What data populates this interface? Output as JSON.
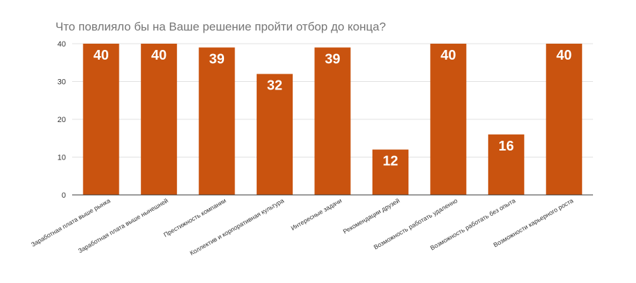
{
  "chart_data": {
    "type": "bar",
    "title": "Что повлияло бы на Ваше решение пройти отбор до конца?",
    "xlabel": "",
    "ylabel": "",
    "ylim": [
      0,
      40
    ],
    "yticks": [
      0,
      10,
      20,
      30,
      40
    ],
    "grid": true,
    "legend": "none",
    "bar_color": "#c9530f",
    "categories": [
      "Заработная плата выше рынка",
      "Заработная плата выше нынешней",
      "Престижность компании",
      "Коллектив и корпоративная культура",
      "Интересные задачи",
      "Рекомендации друзей",
      "Возможность работать удаленно",
      "Возможность работать без опыта",
      "Возможности карьерного роста"
    ],
    "values": [
      40,
      40,
      39,
      32,
      39,
      12,
      40,
      16,
      40
    ]
  }
}
